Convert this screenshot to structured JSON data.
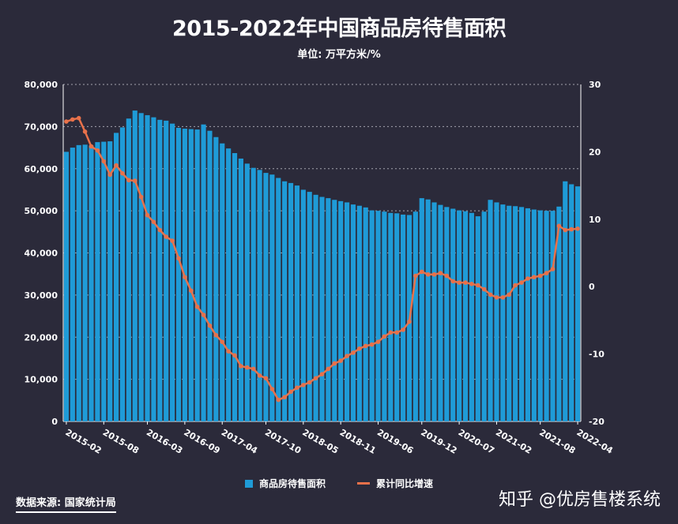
{
  "title": "2015-2022年中国商品房待售面积",
  "subtitle": "单位: 万平方米/%",
  "source": "数据来源: 国家统计局",
  "watermark": "知乎 @优房售楼系统",
  "colors": {
    "bar": "#1f9bd7",
    "line": "#e8714a",
    "background": "#2b2a3a"
  },
  "chart_data": {
    "type": "bar",
    "x_tick_labels": [
      "2015-02",
      "2015-08",
      "2016-03",
      "2016-09",
      "2017-04",
      "2017-10",
      "2018-05",
      "2018-11",
      "2019-06",
      "2019-12",
      "2020-07",
      "2021-02",
      "2021-08",
      "2022-04"
    ],
    "y_left_ticks": [
      "0",
      "10,000",
      "20,000",
      "30,000",
      "40,000",
      "50,000",
      "60,000",
      "70,000",
      "80,000"
    ],
    "y_right_ticks": [
      "-20",
      "-10",
      "0",
      "10",
      "20",
      "30"
    ],
    "ylim_left": [
      0,
      80000
    ],
    "ylim_right": [
      -20,
      30
    ],
    "grid": true,
    "legend_position": "bottom",
    "series": [
      {
        "name": "商品房待售面积",
        "type": "bar",
        "axis": "left",
        "values": [
          64000,
          65000,
          65600,
          65700,
          65500,
          66300,
          66400,
          66500,
          68500,
          69800,
          71900,
          73800,
          73200,
          72700,
          72200,
          71600,
          71400,
          70700,
          69700,
          69500,
          69400,
          69300,
          70500,
          69000,
          67500,
          66000,
          64800,
          63700,
          62400,
          61200,
          60200,
          59700,
          59000,
          58600,
          57800,
          57000,
          56600,
          56000,
          55000,
          54500,
          53800,
          53300,
          53000,
          52600,
          52300,
          52000,
          51500,
          51200,
          50800,
          50100,
          50000,
          49800,
          49500,
          49400,
          49100,
          49000,
          49800,
          53000,
          52700,
          52000,
          51400,
          50900,
          50500,
          50100,
          49900,
          49500,
          48700,
          49800,
          52600,
          52000,
          51500,
          51200,
          51100,
          50900,
          50600,
          50300,
          50100,
          50000,
          50000,
          51000,
          57000,
          56300,
          55800
        ]
      },
      {
        "name": "累计同比增速",
        "type": "line",
        "axis": "right",
        "values": [
          24.5,
          24.8,
          25.0,
          23,
          20.8,
          20.2,
          18.6,
          16.6,
          18,
          16.8,
          15.8,
          15.7,
          13.3,
          10.6,
          9.6,
          8.4,
          7.4,
          6.8,
          4.2,
          1.4,
          -0.6,
          -3,
          -4.2,
          -5.8,
          -7.2,
          -8.2,
          -9.6,
          -10.2,
          -11.8,
          -12.0,
          -12.2,
          -13.2,
          -13.6,
          -15.2,
          -16.8,
          -16.4,
          -15.6,
          -15.0,
          -14.6,
          -14.2,
          -13.6,
          -13.0,
          -12.2,
          -11.4,
          -11.0,
          -10.3,
          -9.8,
          -9.2,
          -8.8,
          -8.6,
          -8.2,
          -7.4,
          -6.8,
          -6.8,
          -6.4,
          -5.2,
          1.6,
          2.2,
          1.8,
          1.8,
          2.0,
          1.6,
          0.8,
          0.6,
          0.6,
          0.4,
          0.2,
          -0.4,
          -1.2,
          -1.6,
          -1.6,
          -1.2,
          0.2,
          0.6,
          1.2,
          1.4,
          1.6,
          2.0,
          2.6,
          9.0,
          8.4,
          8.5,
          8.6
        ]
      }
    ]
  }
}
